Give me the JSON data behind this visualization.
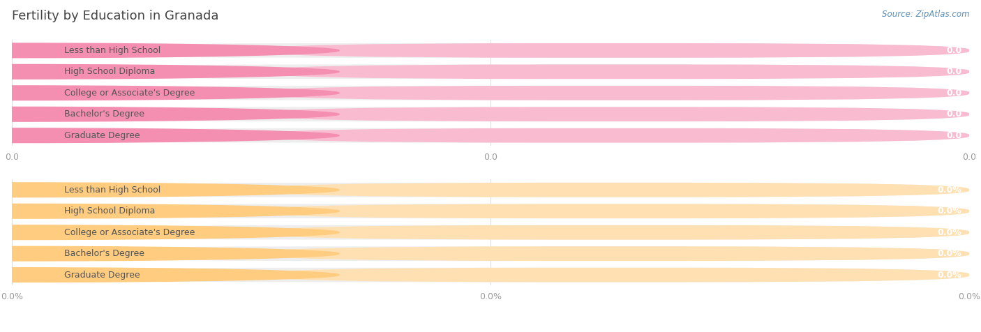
{
  "title": "Fertility by Education in Granada",
  "source": "Source: ZipAtlas.com",
  "categories": [
    "Less than High School",
    "High School Diploma",
    "College or Associate's Degree",
    "Bachelor's Degree",
    "Graduate Degree"
  ],
  "top_values": [
    0.0,
    0.0,
    0.0,
    0.0,
    0.0
  ],
  "bottom_values": [
    0.0,
    0.0,
    0.0,
    0.0,
    0.0
  ],
  "top_bar_color": "#F48FB1",
  "top_bar_bg": "#F8BBD0",
  "top_pill_bg": "#FFFFFF",
  "top_label_color": "#555555",
  "top_value_color": "#FFFFFF",
  "bottom_bar_color": "#FFCC80",
  "bottom_bar_bg": "#FFE0B2",
  "bottom_pill_bg": "#FFFFFF",
  "bottom_label_color": "#555555",
  "bottom_value_color": "#FFFFFF",
  "title_color": "#444444",
  "source_color": "#5B8DB8",
  "grid_color": "#DDDDDD",
  "bg_color": "#FFFFFF",
  "top_tick_labels": [
    "0.0",
    "0.0",
    "0.0"
  ],
  "bottom_tick_labels": [
    "0.0%",
    "0.0%",
    "0.0%"
  ],
  "tick_color": "#999999",
  "title_fontsize": 13,
  "label_fontsize": 9,
  "value_fontsize": 9,
  "tick_fontsize": 9,
  "source_fontsize": 8.5
}
